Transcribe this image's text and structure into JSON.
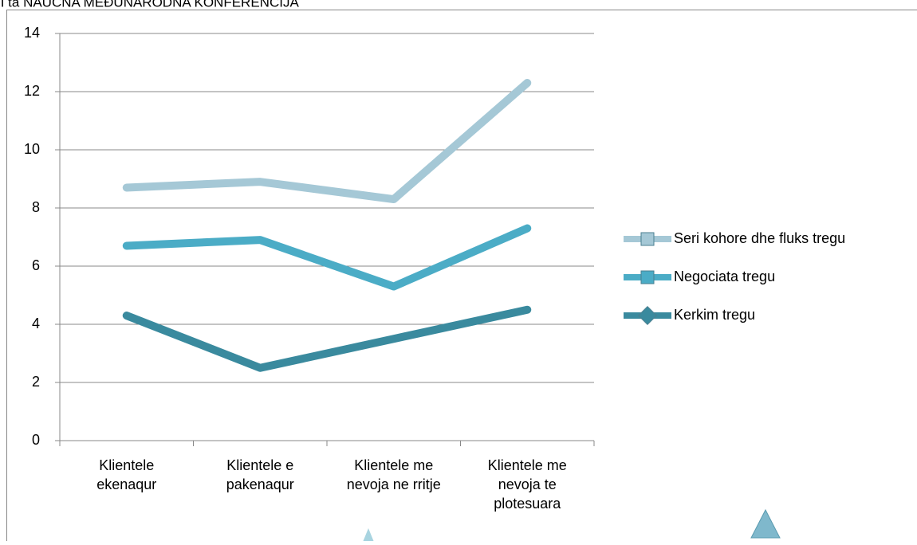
{
  "header": "II ta NAUČNA MEĐUNARODNA KONFERENCIJA",
  "chart_data": {
    "type": "line",
    "categories": [
      "Klientele ekenaqur",
      "Klientele e pakenaqur",
      "Klientele me nevoja ne rritje",
      "Klientele me nevoja te plotesuara"
    ],
    "series": [
      {
        "name": "Seri kohore dhe fluks tregu",
        "color": "#a5c8d6",
        "values": [
          8.7,
          8.9,
          8.3,
          12.3
        ]
      },
      {
        "name": "Negociata tregu",
        "color": "#4bacc6",
        "values": [
          6.7,
          6.9,
          5.3,
          7.3
        ]
      },
      {
        "name": "Kerkim tregu",
        "color": "#3a8a9e",
        "values": [
          4.3,
          2.5,
          3.5,
          4.5
        ]
      }
    ],
    "ylim": [
      0,
      14
    ],
    "yticks": [
      0,
      2,
      4,
      6,
      8,
      10,
      12,
      14
    ],
    "grid": true,
    "legend": "right"
  }
}
